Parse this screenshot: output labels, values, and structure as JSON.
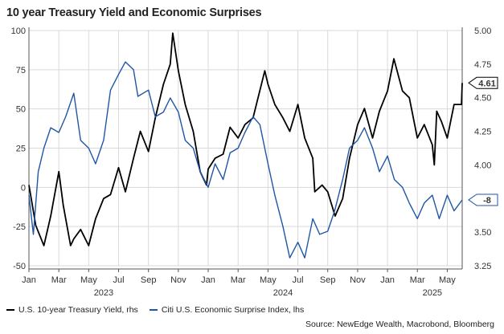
{
  "title": "10 year Treasury Yield and Economic Surprises",
  "source": "Source: NewEdge Wealth, Macrobond, Bloomberg",
  "chart_data": {
    "type": "line",
    "title": "10 year Treasury Yield and Economic Surprises",
    "x_start": "2023-01",
    "x_end": "2025-06",
    "x_tick_labels": [
      "Jan",
      "Mar",
      "May",
      "Jul",
      "Sep",
      "Nov",
      "Jan",
      "Mar",
      "May",
      "Jul",
      "Sep",
      "Nov",
      "Jan",
      "Mar",
      "May"
    ],
    "x_tick_dates": [
      "2023-01",
      "2023-03",
      "2023-05",
      "2023-07",
      "2023-09",
      "2023-11",
      "2024-01",
      "2024-03",
      "2024-05",
      "2024-07",
      "2024-09",
      "2024-11",
      "2025-01",
      "2025-03",
      "2025-05"
    ],
    "year_labels": [
      {
        "label": "2023",
        "date": "2023-06"
      },
      {
        "label": "2024",
        "date": "2024-06"
      },
      {
        "label": "2025",
        "date": "2025-04"
      }
    ],
    "y_left": {
      "lim": [
        -50,
        100
      ],
      "ticks": [
        -50,
        -25,
        0,
        25,
        50,
        75,
        100
      ]
    },
    "y_right": {
      "lim": [
        3.25,
        5.0
      ],
      "ticks": [
        "3.25",
        "3.50",
        "3.75",
        "4.00",
        "4.25",
        "4.50",
        "4.75",
        "5.00"
      ]
    },
    "grid": true,
    "series": [
      {
        "name": "U.S. 10-year Treasury Yield, rhs",
        "axis": "right",
        "color": "#000000",
        "end_label": "4.61",
        "points": [
          [
            "2023-01",
            3.85
          ],
          [
            "2023-01-15",
            3.55
          ],
          [
            "2023-02",
            3.4
          ],
          [
            "2023-02-15",
            3.62
          ],
          [
            "2023-03",
            3.95
          ],
          [
            "2023-03-10",
            3.7
          ],
          [
            "2023-03-25",
            3.4
          ],
          [
            "2023-04",
            3.45
          ],
          [
            "2023-04-15",
            3.52
          ],
          [
            "2023-05",
            3.4
          ],
          [
            "2023-05-15",
            3.6
          ],
          [
            "2023-06",
            3.75
          ],
          [
            "2023-06-15",
            3.78
          ],
          [
            "2023-07",
            3.98
          ],
          [
            "2023-07-15",
            3.8
          ],
          [
            "2023-08",
            4.05
          ],
          [
            "2023-08-15",
            4.25
          ],
          [
            "2023-09",
            4.1
          ],
          [
            "2023-09-15",
            4.35
          ],
          [
            "2023-10",
            4.6
          ],
          [
            "2023-10-15",
            4.75
          ],
          [
            "2023-10-20",
            4.98
          ],
          [
            "2023-11",
            4.7
          ],
          [
            "2023-11-15",
            4.45
          ],
          [
            "2023-12",
            4.25
          ],
          [
            "2023-12-15",
            3.95
          ],
          [
            "2023-12-28",
            3.85
          ],
          [
            "2024-01",
            3.97
          ],
          [
            "2024-01-15",
            4.05
          ],
          [
            "2024-02",
            4.08
          ],
          [
            "2024-02-15",
            4.28
          ],
          [
            "2024-03",
            4.2
          ],
          [
            "2024-03-15",
            4.3
          ],
          [
            "2024-04",
            4.35
          ],
          [
            "2024-04-25",
            4.7
          ],
          [
            "2024-05",
            4.6
          ],
          [
            "2024-05-15",
            4.45
          ],
          [
            "2024-06",
            4.35
          ],
          [
            "2024-06-15",
            4.25
          ],
          [
            "2024-07",
            4.45
          ],
          [
            "2024-07-15",
            4.2
          ],
          [
            "2024-08",
            4.05
          ],
          [
            "2024-08-05",
            3.8
          ],
          [
            "2024-08-20",
            3.85
          ],
          [
            "2024-09",
            3.8
          ],
          [
            "2024-09-16",
            3.62
          ],
          [
            "2024-10",
            3.75
          ],
          [
            "2024-10-15",
            4.05
          ],
          [
            "2024-11",
            4.3
          ],
          [
            "2024-11-15",
            4.42
          ],
          [
            "2024-12",
            4.2
          ],
          [
            "2024-12-15",
            4.4
          ],
          [
            "2025-01",
            4.55
          ],
          [
            "2025-01-14",
            4.79
          ],
          [
            "2025-02",
            4.55
          ],
          [
            "2025-02-15",
            4.5
          ],
          [
            "2025-03",
            4.2
          ],
          [
            "2025-03-15",
            4.3
          ],
          [
            "2025-04",
            4.15
          ],
          [
            "2025-04-05",
            4.0
          ],
          [
            "2025-04-10",
            4.4
          ],
          [
            "2025-04-20",
            4.32
          ],
          [
            "2025-05",
            4.2
          ],
          [
            "2025-05-15",
            4.45
          ],
          [
            "2025-05-30",
            4.45
          ],
          [
            "2025-06",
            4.61
          ]
        ]
      },
      {
        "name": "Citi U.S. Economic Surprise Index, lhs",
        "axis": "left",
        "color": "#1f56a6",
        "end_label": "-8",
        "points": [
          [
            "2023-01",
            -5
          ],
          [
            "2023-01-10",
            -30
          ],
          [
            "2023-01-20",
            10
          ],
          [
            "2023-02",
            25
          ],
          [
            "2023-02-15",
            38
          ],
          [
            "2023-03",
            35
          ],
          [
            "2023-03-15",
            45
          ],
          [
            "2023-04",
            60
          ],
          [
            "2023-04-15",
            30
          ],
          [
            "2023-05",
            25
          ],
          [
            "2023-05-15",
            15
          ],
          [
            "2023-06",
            30
          ],
          [
            "2023-06-15",
            62
          ],
          [
            "2023-07",
            72
          ],
          [
            "2023-07-15",
            80
          ],
          [
            "2023-08",
            75
          ],
          [
            "2023-08-10",
            58
          ],
          [
            "2023-09",
            62
          ],
          [
            "2023-09-15",
            45
          ],
          [
            "2023-10",
            48
          ],
          [
            "2023-10-15",
            57
          ],
          [
            "2023-11",
            48
          ],
          [
            "2023-11-15",
            30
          ],
          [
            "2023-12",
            25
          ],
          [
            "2023-12-15",
            10
          ],
          [
            "2024-01",
            0
          ],
          [
            "2024-01-15",
            15
          ],
          [
            "2024-02",
            5
          ],
          [
            "2024-02-15",
            22
          ],
          [
            "2024-03",
            25
          ],
          [
            "2024-03-15",
            35
          ],
          [
            "2024-04",
            45
          ],
          [
            "2024-04-15",
            40
          ],
          [
            "2024-05",
            15
          ],
          [
            "2024-05-15",
            -5
          ],
          [
            "2024-06",
            -25
          ],
          [
            "2024-06-15",
            -45
          ],
          [
            "2024-07",
            -35
          ],
          [
            "2024-07-15",
            -45
          ],
          [
            "2024-08",
            -20
          ],
          [
            "2024-08-15",
            -30
          ],
          [
            "2024-09",
            -28
          ],
          [
            "2024-09-15",
            -15
          ],
          [
            "2024-10",
            5
          ],
          [
            "2024-10-15",
            25
          ],
          [
            "2024-11",
            30
          ],
          [
            "2024-11-15",
            38
          ],
          [
            "2024-12",
            25
          ],
          [
            "2024-12-15",
            10
          ],
          [
            "2025-01",
            20
          ],
          [
            "2025-01-15",
            5
          ],
          [
            "2025-02",
            0
          ],
          [
            "2025-02-15",
            -10
          ],
          [
            "2025-03",
            -20
          ],
          [
            "2025-03-15",
            -10
          ],
          [
            "2025-04",
            -5
          ],
          [
            "2025-04-15",
            -20
          ],
          [
            "2025-05",
            -5
          ],
          [
            "2025-05-15",
            -15
          ],
          [
            "2025-06",
            -8
          ]
        ]
      }
    ]
  }
}
